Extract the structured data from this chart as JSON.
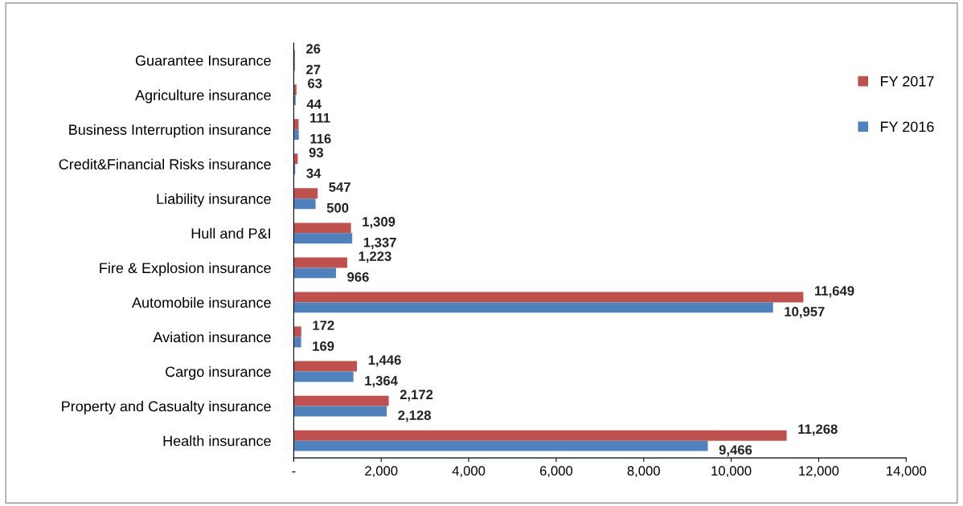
{
  "chart_data": {
    "type": "bar",
    "orientation": "horizontal",
    "categories": [
      "Guarantee Insurance",
      "Agriculture insurance",
      "Business Interruption insurance",
      "Credit&Financial Risks insurance",
      "Liability insurance",
      "Hull and P&I",
      "Fire & Explosion insurance",
      "Automobile insurance",
      "Aviation insurance",
      "Cargo insurance",
      "Property and Casualty insurance",
      "Health insurance"
    ],
    "series": [
      {
        "name": "FY 2017",
        "color": "#c0504d",
        "values": [
          26,
          63,
          111,
          93,
          547,
          1309,
          1223,
          11649,
          172,
          1446,
          2172,
          11268
        ],
        "value_labels": [
          "26",
          "63",
          "111",
          "93",
          "547",
          "1,309",
          "1,223",
          "11,649",
          "172",
          "1,446",
          "2,172",
          "11,268"
        ]
      },
      {
        "name": "FY 2016",
        "color": "#4f81bd",
        "values": [
          27,
          44,
          116,
          34,
          500,
          1337,
          966,
          10957,
          169,
          1364,
          2128,
          9466
        ],
        "value_labels": [
          "27",
          "44",
          "116",
          "34",
          "500",
          "1,337",
          "966",
          "10,957",
          "169",
          "1,364",
          "2,128",
          "9,466"
        ]
      }
    ],
    "xlim": [
      0,
      14000
    ],
    "xticks": [
      {
        "value": 0,
        "label": "-"
      },
      {
        "value": 2000,
        "label": "2,000"
      },
      {
        "value": 4000,
        "label": "4,000"
      },
      {
        "value": 6000,
        "label": "6,000"
      },
      {
        "value": 8000,
        "label": "8,000"
      },
      {
        "value": 10000,
        "label": "10,000"
      },
      {
        "value": 12000,
        "label": "12,000"
      },
      {
        "value": 14000,
        "label": "14,000"
      }
    ],
    "grid": false,
    "legend": "right"
  }
}
